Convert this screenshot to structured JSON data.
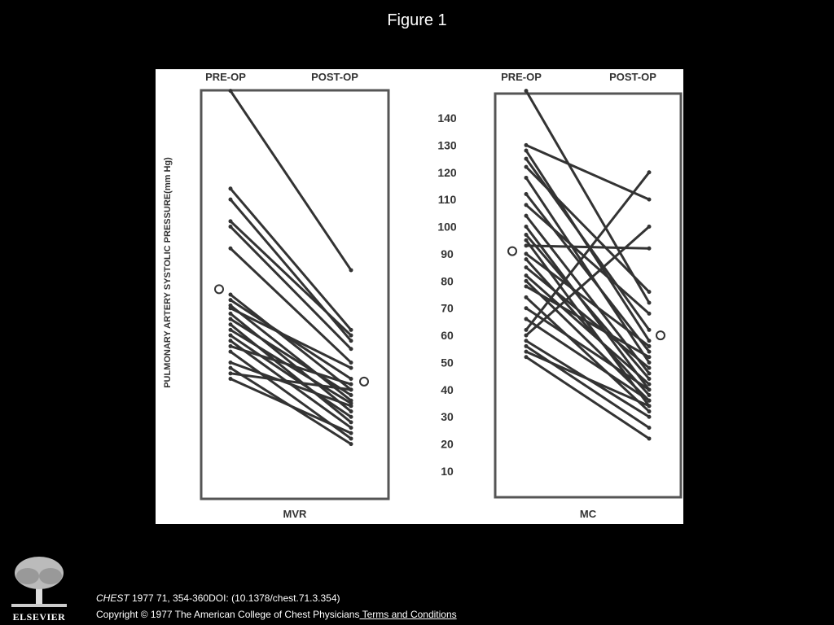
{
  "slide": {
    "title": "Figure 1",
    "citation": {
      "journal": "CHEST",
      "details": " 1977 71, 354-360DOI: (10.1378/chest.71.3.354)"
    },
    "copyright": "Copyright © 1977 The American College of Chest Physicians",
    "terms_link": " Terms and Conditions",
    "publisher_logo": "ELSEVIER"
  },
  "chart_data": [
    {
      "type": "line",
      "panel": "MVR",
      "ylabel": "PULMONARY ARTERY SYSTOLIC PRESSURE(mm Hg)",
      "x": [
        "PRE-OP",
        "POST-OP"
      ],
      "ylim": [
        0,
        150
      ],
      "yticks": [
        10,
        20,
        30,
        40,
        50,
        60,
        70,
        80,
        90,
        100,
        110,
        120,
        130,
        140
      ],
      "series": [
        {
          "values": [
            150,
            84
          ]
        },
        {
          "values": [
            114,
            62
          ]
        },
        {
          "values": [
            110,
            58
          ]
        },
        {
          "values": [
            102,
            60
          ]
        },
        {
          "values": [
            100,
            55
          ]
        },
        {
          "values": [
            92,
            50
          ]
        },
        {
          "values": [
            75,
            40
          ]
        },
        {
          "values": [
            73,
            44
          ]
        },
        {
          "values": [
            71,
            36
          ]
        },
        {
          "values": [
            70,
            48
          ]
        },
        {
          "values": [
            68,
            32
          ]
        },
        {
          "values": [
            66,
            38
          ]
        },
        {
          "values": [
            64,
            28
          ]
        },
        {
          "values": [
            62,
            35
          ]
        },
        {
          "values": [
            60,
            30
          ]
        },
        {
          "values": [
            58,
            26
          ]
        },
        {
          "values": [
            56,
            42
          ]
        },
        {
          "values": [
            54,
            22
          ]
        },
        {
          "values": [
            50,
            34
          ]
        },
        {
          "values": [
            48,
            20
          ]
        },
        {
          "values": [
            46,
            40
          ]
        },
        {
          "values": [
            44,
            24
          ]
        }
      ],
      "mean": {
        "values": [
          77,
          43
        ],
        "marker": "circle"
      }
    },
    {
      "type": "line",
      "panel": "MC",
      "x": [
        "PRE-OP",
        "POST-OP"
      ],
      "ylim": [
        0,
        150
      ],
      "yticks": [
        10,
        20,
        30,
        40,
        50,
        60,
        70,
        80,
        90,
        100,
        110,
        120,
        130,
        140
      ],
      "series": [
        {
          "values": [
            150,
            72
          ]
        },
        {
          "values": [
            130,
            110
          ]
        },
        {
          "values": [
            128,
            58
          ]
        },
        {
          "values": [
            125,
            62
          ]
        },
        {
          "values": [
            122,
            76
          ]
        },
        {
          "values": [
            118,
            50
          ]
        },
        {
          "values": [
            112,
            54
          ]
        },
        {
          "values": [
            108,
            68
          ]
        },
        {
          "values": [
            104,
            46
          ]
        },
        {
          "values": [
            100,
            40
          ]
        },
        {
          "values": [
            97,
            44
          ]
        },
        {
          "values": [
            95,
            34
          ]
        },
        {
          "values": [
            93,
            92
          ]
        },
        {
          "values": [
            90,
            56
          ]
        },
        {
          "values": [
            88,
            38
          ]
        },
        {
          "values": [
            85,
            48
          ]
        },
        {
          "values": [
            82,
            42
          ]
        },
        {
          "values": [
            80,
            36
          ]
        },
        {
          "values": [
            78,
            52
          ]
        },
        {
          "values": [
            74,
            32
          ]
        },
        {
          "values": [
            70,
            40
          ]
        },
        {
          "values": [
            66,
            36
          ]
        },
        {
          "values": [
            62,
            120
          ]
        },
        {
          "values": [
            60,
            100
          ]
        },
        {
          "values": [
            58,
            30
          ]
        },
        {
          "values": [
            56,
            26
          ]
        },
        {
          "values": [
            54,
            34
          ]
        },
        {
          "values": [
            52,
            22
          ]
        }
      ],
      "mean": {
        "values": [
          91,
          60
        ],
        "marker": "circle"
      }
    }
  ]
}
